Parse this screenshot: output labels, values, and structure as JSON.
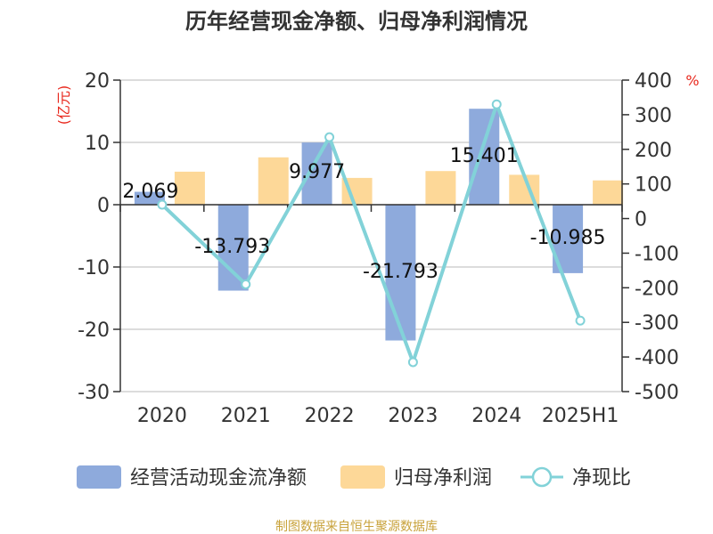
{
  "chart_data": {
    "type": "bar",
    "title": "历年经营现金净额、归母净利润情况",
    "categories": [
      "2020",
      "2021",
      "2022",
      "2023",
      "2024",
      "2025H1"
    ],
    "left_axis": {
      "unit": "(亿元)",
      "ylim": [
        -30,
        20
      ],
      "ticks": [
        20,
        10,
        0,
        -10,
        -20,
        -30
      ]
    },
    "right_axis": {
      "unit": "%",
      "ylim": [
        -500,
        400
      ],
      "ticks": [
        400,
        300,
        200,
        100,
        0,
        -100,
        -200,
        -300,
        -400,
        -500
      ]
    },
    "series": [
      {
        "name": "经营活动现金流净额",
        "type": "bar",
        "axis": "left",
        "color": "#8eaadc",
        "values": [
          2.069,
          -13.793,
          9.977,
          -21.793,
          15.401,
          -10.985
        ],
        "labels": [
          "2.069",
          "-13.793",
          "9.977",
          "-21.793",
          "15.401",
          "-10.985"
        ]
      },
      {
        "name": "归母净利润",
        "type": "bar",
        "axis": "left",
        "color": "#fdd898",
        "values": [
          5.3,
          7.6,
          4.3,
          5.4,
          4.8,
          3.9
        ]
      },
      {
        "name": "净现比",
        "type": "line",
        "axis": "right",
        "color": "#82d2d8",
        "values": [
          40,
          -190,
          235,
          -415,
          330,
          -295
        ]
      }
    ],
    "grid": true,
    "legend_position": "bottom"
  },
  "source": "制图数据来自恒生聚源数据库"
}
